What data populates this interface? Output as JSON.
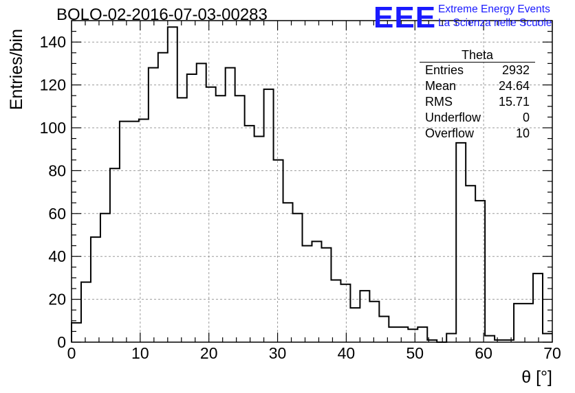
{
  "header": {
    "title": "BOLO-02-2016-07-03-00283"
  },
  "logo": {
    "mark": "EEE",
    "line1": "Extreme Energy Events",
    "line2": "La Scienza nelle Scuole"
  },
  "stats": {
    "title": "Theta",
    "rows": [
      {
        "label": "Entries",
        "value": "2932"
      },
      {
        "label": "Mean",
        "value": "24.64"
      },
      {
        "label": "RMS",
        "value": "15.71"
      },
      {
        "label": "Underflow",
        "value": "0"
      },
      {
        "label": "Overflow",
        "value": "10"
      }
    ]
  },
  "chart_data": {
    "type": "histogram",
    "title": "BOLO-02-2016-07-03-00283",
    "xlabel": "θ [°]",
    "ylabel": "Entries/bin",
    "xlim": [
      0,
      70
    ],
    "ylim": [
      0,
      150
    ],
    "bin_width": 1.4,
    "grid": true,
    "x_ticks": [
      0,
      10,
      20,
      30,
      40,
      50,
      60,
      70
    ],
    "y_ticks": [
      0,
      20,
      40,
      60,
      80,
      100,
      120,
      140
    ],
    "values": [
      9,
      28,
      49,
      60,
      81,
      103,
      103,
      104,
      128,
      135,
      147,
      114,
      125,
      130,
      119,
      115,
      128,
      115,
      101,
      96,
      118,
      85,
      65,
      60,
      45,
      47,
      44,
      29,
      27,
      16,
      24,
      19,
      12,
      7,
      7,
      6,
      7,
      1,
      0,
      4,
      93,
      73,
      66,
      3,
      1,
      1,
      18,
      18,
      32,
      4
    ]
  },
  "colors": {
    "line": "#000000",
    "grid": "#9a9a9a",
    "logo": "#1a1aff"
  }
}
